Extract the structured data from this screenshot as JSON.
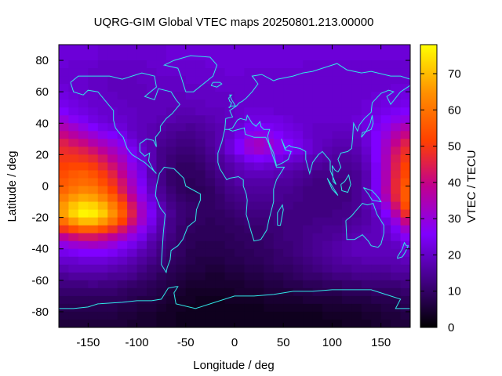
{
  "chart_data": {
    "type": "heatmap",
    "title": "UQRG-GIM Global VTEC maps 20250801.213.00000",
    "xlabel": "Longitude / deg",
    "ylabel": "Latitude / deg",
    "colorbar_label": "VTEC / TECU",
    "xlim": [
      -180,
      180
    ],
    "ylim": [
      -90,
      90
    ],
    "xticks": [
      -150,
      -100,
      -50,
      0,
      50,
      100,
      150
    ],
    "yticks": [
      -80,
      -60,
      -40,
      -20,
      0,
      20,
      40,
      60,
      80
    ],
    "cbar_range": [
      0,
      78
    ],
    "cbar_ticks": [
      0,
      10,
      20,
      30,
      40,
      50,
      60,
      70
    ],
    "colormap": [
      "#000000",
      "#400080",
      "#8000ff",
      "#c00090",
      "#ff4000",
      "#ff9000",
      "#ffff00"
    ],
    "coastline_color": "#30e8e8",
    "grid": false,
    "lat": [
      87.5,
      82.5,
      77.5,
      72.5,
      67.5,
      62.5,
      57.5,
      52.5,
      47.5,
      42.5,
      37.5,
      32.5,
      27.5,
      22.5,
      17.5,
      12.5,
      7.5,
      2.5,
      -2.5,
      -7.5,
      -12.5,
      -17.5,
      -22.5,
      -27.5,
      -32.5,
      -37.5,
      -42.5,
      -47.5,
      -52.5,
      -57.5,
      -62.5,
      -67.5,
      -72.5,
      -77.5,
      -82.5,
      -87.5
    ],
    "lon": [
      -175,
      -165,
      -155,
      -145,
      -135,
      -125,
      -115,
      -105,
      -95,
      -85,
      -75,
      -65,
      -55,
      -45,
      -35,
      -25,
      -15,
      -5,
      5,
      15,
      25,
      35,
      45,
      55,
      65,
      75,
      85,
      95,
      105,
      115,
      125,
      135,
      145,
      155,
      165,
      175
    ],
    "vtec": [
      [
        22,
        22,
        22,
        22,
        21,
        21,
        21,
        21,
        21,
        21,
        21,
        22,
        22,
        22,
        22,
        22,
        22,
        22,
        22,
        22,
        22,
        22,
        22,
        22,
        22,
        22,
        22,
        22,
        22,
        22,
        22,
        22,
        22,
        22,
        22,
        22
      ],
      [
        22,
        22,
        22,
        22,
        21,
        21,
        21,
        21,
        21,
        21,
        21,
        22,
        22,
        22,
        22,
        22,
        22,
        22,
        22,
        22,
        22,
        22,
        22,
        22,
        22,
        22,
        22,
        22,
        22,
        22,
        22,
        22,
        22,
        22,
        22,
        22
      ],
      [
        22,
        21,
        21,
        21,
        20,
        20,
        20,
        20,
        20,
        21,
        21,
        21,
        21,
        21,
        21,
        22,
        22,
        22,
        22,
        22,
        22,
        22,
        22,
        22,
        22,
        21,
        21,
        21,
        21,
        21,
        21,
        21,
        21,
        21,
        21,
        21
      ],
      [
        21,
        21,
        21,
        20,
        20,
        20,
        20,
        20,
        20,
        20,
        21,
        21,
        21,
        21,
        21,
        21,
        21,
        22,
        22,
        21,
        21,
        21,
        21,
        21,
        21,
        21,
        21,
        21,
        21,
        21,
        21,
        21,
        21,
        21,
        21,
        21
      ],
      [
        21,
        21,
        21,
        20,
        20,
        19,
        19,
        19,
        20,
        20,
        20,
        20,
        20,
        21,
        21,
        21,
        21,
        21,
        21,
        21,
        21,
        21,
        21,
        21,
        21,
        21,
        21,
        21,
        21,
        21,
        21,
        21,
        21,
        21,
        21,
        21
      ],
      [
        22,
        21,
        21,
        20,
        20,
        19,
        19,
        19,
        19,
        20,
        20,
        20,
        20,
        20,
        20,
        20,
        21,
        21,
        21,
        21,
        21,
        21,
        21,
        21,
        21,
        21,
        21,
        21,
        21,
        21,
        21,
        21,
        21,
        21,
        22,
        22
      ],
      [
        23,
        22,
        21,
        21,
        20,
        20,
        19,
        19,
        19,
        19,
        19,
        19,
        19,
        20,
        20,
        20,
        20,
        20,
        21,
        21,
        21,
        21,
        21,
        21,
        21,
        21,
        21,
        21,
        21,
        21,
        21,
        21,
        22,
        22,
        22,
        23
      ],
      [
        24,
        23,
        22,
        21,
        21,
        20,
        20,
        19,
        19,
        19,
        19,
        19,
        19,
        19,
        19,
        20,
        20,
        20,
        21,
        21,
        21,
        21,
        21,
        21,
        21,
        21,
        21,
        21,
        21,
        21,
        21,
        22,
        22,
        23,
        23,
        24
      ],
      [
        26,
        24,
        23,
        22,
        21,
        21,
        20,
        20,
        19,
        19,
        19,
        18,
        18,
        18,
        19,
        19,
        19,
        20,
        21,
        22,
        22,
        22,
        21,
        21,
        21,
        21,
        21,
        21,
        21,
        21,
        21,
        22,
        23,
        24,
        25,
        26
      ],
      [
        30,
        27,
        25,
        23,
        22,
        21,
        21,
        20,
        19,
        19,
        18,
        18,
        17,
        17,
        17,
        18,
        19,
        20,
        21,
        23,
        23,
        23,
        23,
        22,
        21,
        21,
        21,
        21,
        21,
        21,
        22,
        23,
        24,
        26,
        28,
        29
      ],
      [
        35,
        32,
        29,
        26,
        24,
        23,
        22,
        20,
        19,
        18,
        17,
        16,
        16,
        15,
        16,
        17,
        18,
        20,
        22,
        25,
        26,
        25,
        24,
        23,
        22,
        21,
        20,
        20,
        20,
        20,
        21,
        23,
        25,
        28,
        32,
        35
      ],
      [
        40,
        37,
        34,
        31,
        28,
        26,
        24,
        21,
        19,
        18,
        16,
        15,
        14,
        14,
        15,
        16,
        18,
        21,
        24,
        28,
        29,
        28,
        26,
        24,
        23,
        21,
        20,
        20,
        19,
        19,
        20,
        22,
        26,
        30,
        36,
        40
      ],
      [
        45,
        42,
        40,
        36,
        33,
        30,
        27,
        23,
        20,
        18,
        15,
        14,
        13,
        13,
        14,
        16,
        18,
        22,
        26,
        31,
        33,
        31,
        28,
        26,
        24,
        22,
        20,
        19,
        18,
        18,
        19,
        22,
        26,
        32,
        39,
        45
      ],
      [
        48,
        47,
        45,
        42,
        38,
        34,
        30,
        25,
        21,
        18,
        14,
        13,
        12,
        12,
        13,
        15,
        18,
        22,
        26,
        30,
        32,
        30,
        28,
        26,
        24,
        22,
        20,
        18,
        17,
        17,
        18,
        21,
        26,
        33,
        42,
        48
      ],
      [
        50,
        50,
        49,
        47,
        43,
        38,
        33,
        27,
        22,
        18,
        14,
        12,
        11,
        11,
        12,
        14,
        16,
        19,
        22,
        25,
        26,
        25,
        24,
        22,
        21,
        19,
        18,
        17,
        16,
        16,
        17,
        20,
        26,
        34,
        44,
        50
      ],
      [
        52,
        53,
        53,
        51,
        47,
        42,
        36,
        29,
        23,
        18,
        14,
        12,
        10,
        10,
        11,
        13,
        15,
        17,
        19,
        21,
        22,
        21,
        20,
        19,
        18,
        17,
        16,
        15,
        15,
        15,
        16,
        19,
        25,
        34,
        45,
        52
      ],
      [
        54,
        56,
        57,
        55,
        51,
        46,
        39,
        31,
        24,
        18,
        14,
        11,
        10,
        10,
        10,
        12,
        14,
        16,
        18,
        19,
        19,
        19,
        18,
        17,
        16,
        15,
        14,
        14,
        14,
        14,
        15,
        18,
        25,
        35,
        46,
        53
      ],
      [
        56,
        58,
        59,
        58,
        54,
        49,
        42,
        33,
        25,
        19,
        14,
        11,
        10,
        9,
        10,
        11,
        13,
        15,
        17,
        17,
        17,
        17,
        16,
        16,
        15,
        14,
        13,
        13,
        13,
        13,
        15,
        18,
        25,
        35,
        47,
        55
      ],
      [
        58,
        61,
        63,
        62,
        58,
        52,
        44,
        35,
        27,
        20,
        15,
        12,
        10,
        9,
        9,
        10,
        12,
        14,
        15,
        16,
        16,
        16,
        15,
        15,
        14,
        13,
        13,
        13,
        13,
        13,
        15,
        18,
        25,
        36,
        47,
        56
      ],
      [
        62,
        66,
        68,
        67,
        63,
        57,
        49,
        39,
        29,
        22,
        16,
        13,
        11,
        10,
        10,
        10,
        11,
        13,
        14,
        15,
        15,
        15,
        15,
        14,
        14,
        13,
        13,
        13,
        13,
        13,
        15,
        18,
        24,
        34,
        46,
        56
      ],
      [
        66,
        71,
        74,
        73,
        69,
        62,
        54,
        43,
        32,
        24,
        18,
        14,
        12,
        11,
        10,
        10,
        11,
        12,
        13,
        14,
        14,
        14,
        14,
        14,
        13,
        13,
        13,
        13,
        13,
        14,
        15,
        18,
        22,
        30,
        42,
        54
      ],
      [
        67,
        73,
        77,
        76,
        72,
        65,
        56,
        45,
        33,
        25,
        19,
        15,
        12,
        11,
        10,
        10,
        10,
        11,
        12,
        13,
        13,
        13,
        13,
        13,
        13,
        13,
        13,
        13,
        14,
        14,
        15,
        17,
        20,
        26,
        36,
        48
      ],
      [
        60,
        66,
        70,
        70,
        66,
        60,
        52,
        42,
        32,
        24,
        18,
        14,
        12,
        10,
        10,
        9,
        10,
        10,
        11,
        12,
        12,
        12,
        13,
        13,
        13,
        13,
        14,
        14,
        14,
        15,
        16,
        17,
        19,
        23,
        30,
        40
      ],
      [
        50,
        54,
        57,
        57,
        54,
        49,
        43,
        35,
        28,
        22,
        17,
        14,
        11,
        10,
        9,
        9,
        9,
        10,
        10,
        11,
        11,
        12,
        12,
        13,
        13,
        14,
        14,
        15,
        15,
        16,
        17,
        18,
        19,
        21,
        25,
        32
      ],
      [
        38,
        41,
        43,
        43,
        41,
        38,
        34,
        29,
        24,
        19,
        16,
        13,
        11,
        9,
        9,
        9,
        9,
        9,
        10,
        10,
        11,
        11,
        12,
        13,
        13,
        14,
        15,
        15,
        16,
        17,
        18,
        19,
        19,
        20,
        23,
        27
      ],
      [
        29,
        31,
        32,
        33,
        32,
        30,
        27,
        24,
        21,
        17,
        14,
        12,
        10,
        9,
        8,
        8,
        8,
        9,
        9,
        10,
        10,
        11,
        12,
        12,
        13,
        14,
        15,
        16,
        17,
        18,
        19,
        19,
        19,
        19,
        20,
        23
      ],
      [
        24,
        25,
        26,
        26,
        26,
        25,
        23,
        21,
        18,
        16,
        13,
        11,
        10,
        8,
        8,
        8,
        8,
        8,
        9,
        9,
        10,
        10,
        11,
        12,
        13,
        14,
        15,
        16,
        17,
        18,
        19,
        19,
        19,
        19,
        19,
        21
      ],
      [
        21,
        21,
        22,
        22,
        22,
        21,
        20,
        18,
        16,
        14,
        12,
        10,
        9,
        8,
        7,
        7,
        7,
        8,
        8,
        9,
        9,
        10,
        11,
        11,
        12,
        13,
        14,
        15,
        16,
        17,
        17,
        18,
        18,
        18,
        18,
        19
      ],
      [
        18,
        19,
        19,
        19,
        19,
        18,
        17,
        16,
        14,
        12,
        11,
        9,
        8,
        7,
        7,
        6,
        6,
        7,
        7,
        8,
        8,
        9,
        10,
        10,
        11,
        12,
        13,
        14,
        15,
        15,
        16,
        16,
        16,
        16,
        17,
        17
      ],
      [
        15,
        16,
        16,
        16,
        16,
        15,
        15,
        14,
        12,
        11,
        9,
        8,
        7,
        6,
        6,
        5,
        5,
        6,
        6,
        7,
        7,
        8,
        8,
        9,
        10,
        11,
        11,
        12,
        13,
        13,
        14,
        14,
        14,
        14,
        15,
        15
      ],
      [
        13,
        13,
        13,
        14,
        13,
        13,
        12,
        11,
        10,
        9,
        8,
        7,
        6,
        5,
        5,
        5,
        5,
        5,
        5,
        6,
        6,
        7,
        7,
        8,
        8,
        9,
        9,
        10,
        10,
        11,
        11,
        12,
        12,
        12,
        12,
        13
      ],
      [
        11,
        11,
        11,
        11,
        11,
        11,
        10,
        9,
        9,
        8,
        7,
        6,
        5,
        4,
        4,
        4,
        4,
        4,
        5,
        5,
        5,
        6,
        6,
        6,
        7,
        7,
        8,
        8,
        8,
        9,
        9,
        9,
        10,
        10,
        10,
        11
      ],
      [
        9,
        9,
        9,
        9,
        9,
        9,
        9,
        8,
        7,
        7,
        6,
        5,
        4,
        4,
        3,
        3,
        3,
        4,
        4,
        4,
        4,
        5,
        5,
        5,
        5,
        6,
        6,
        6,
        6,
        7,
        7,
        7,
        8,
        8,
        8,
        9
      ],
      [
        8,
        8,
        8,
        8,
        8,
        8,
        7,
        7,
        6,
        6,
        5,
        4,
        4,
        3,
        3,
        3,
        3,
        3,
        3,
        3,
        3,
        4,
        4,
        4,
        4,
        4,
        4,
        5,
        5,
        5,
        5,
        6,
        6,
        7,
        7,
        8
      ],
      [
        7,
        7,
        7,
        7,
        7,
        7,
        6,
        6,
        5,
        5,
        4,
        4,
        3,
        3,
        3,
        3,
        3,
        3,
        3,
        3,
        3,
        3,
        3,
        3,
        3,
        3,
        3,
        4,
        4,
        4,
        4,
        5,
        5,
        6,
        6,
        7
      ],
      [
        6,
        6,
        6,
        6,
        6,
        6,
        6,
        5,
        5,
        5,
        4,
        4,
        3,
        3,
        3,
        3,
        3,
        3,
        3,
        3,
        3,
        3,
        3,
        3,
        3,
        3,
        3,
        3,
        3,
        4,
        4,
        4,
        5,
        5,
        6,
        6
      ]
    ]
  }
}
